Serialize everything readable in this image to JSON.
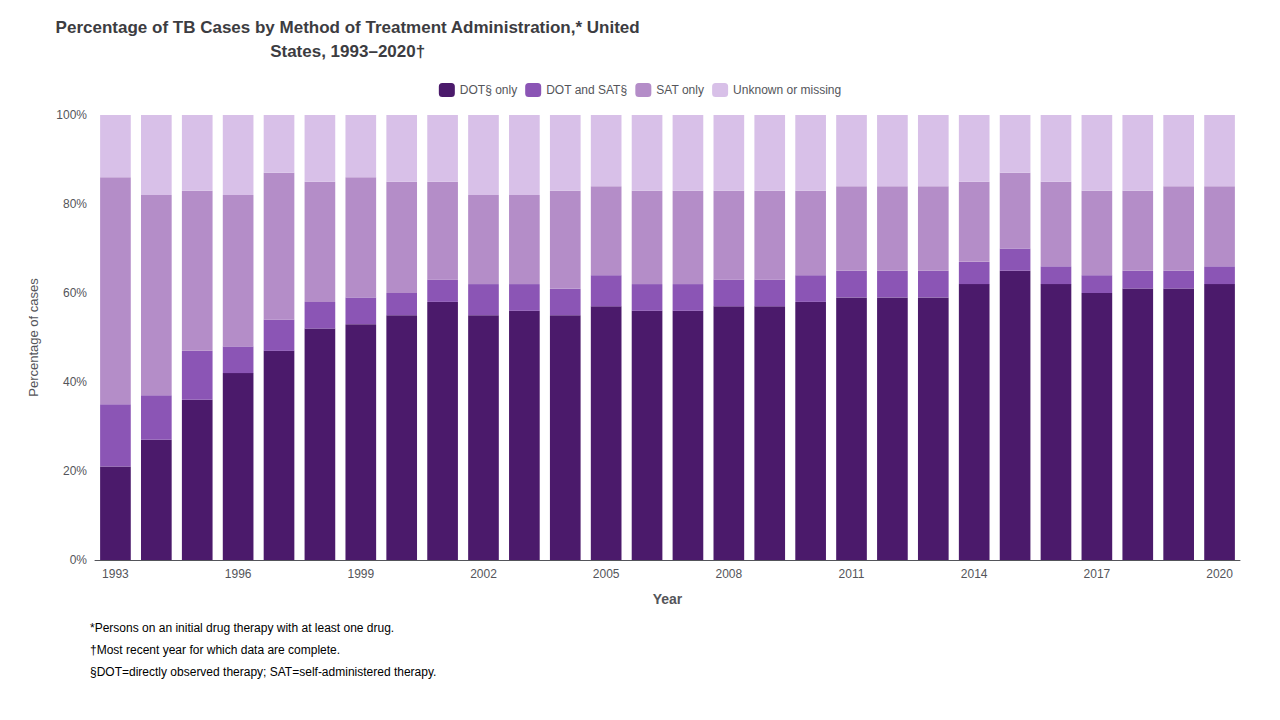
{
  "chart_data": {
    "type": "bar",
    "stacked": true,
    "title": "Percentage of TB Cases by Method of Treatment Administration,* United\nStates, 1993–2020†",
    "xlabel": "Year",
    "ylabel": "Percentage of cases",
    "categories": [
      "1993",
      null,
      null,
      "1996",
      null,
      null,
      "1999",
      null,
      null,
      "2002",
      null,
      null,
      "2005",
      null,
      null,
      "2008",
      null,
      null,
      "2011",
      null,
      null,
      "2014",
      null,
      null,
      "2017",
      null,
      null,
      "2020"
    ],
    "series": [
      {
        "name": "DOT§ only",
        "color": "#4B1A6B",
        "values": [
          21,
          27,
          36,
          42,
          47,
          52,
          53,
          55,
          58,
          55,
          56,
          55,
          57,
          56,
          56,
          57,
          57,
          58,
          59,
          59,
          59,
          62,
          65,
          62,
          60,
          61,
          61,
          62
        ]
      },
      {
        "name": "DOT and SAT§",
        "color": "#8B55B5",
        "values": [
          14,
          10,
          11,
          6,
          7,
          6,
          6,
          5,
          5,
          7,
          6,
          6,
          7,
          6,
          6,
          6,
          6,
          6,
          6,
          6,
          6,
          5,
          5,
          4,
          4,
          4,
          4,
          4
        ]
      },
      {
        "name": "SAT only",
        "color": "#B48DC8",
        "values": [
          51,
          45,
          36,
          34,
          33,
          27,
          27,
          25,
          22,
          20,
          20,
          22,
          20,
          21,
          21,
          20,
          20,
          19,
          19,
          19,
          19,
          18,
          17,
          19,
          19,
          18,
          19,
          18
        ]
      },
      {
        "name": "Unknown or missing",
        "color": "#D8C0E8",
        "values": [
          14,
          18,
          17,
          18,
          13,
          15,
          14,
          15,
          15,
          18,
          18,
          17,
          16,
          17,
          17,
          17,
          17,
          17,
          16,
          16,
          16,
          15,
          13,
          15,
          17,
          17,
          16,
          16
        ]
      }
    ],
    "ylim": [
      0,
      100
    ],
    "yticks": [
      {
        "value": 0,
        "label": "0%"
      },
      {
        "value": 20,
        "label": "20%"
      },
      {
        "value": 40,
        "label": "40%"
      },
      {
        "value": 60,
        "label": "60%"
      },
      {
        "value": 80,
        "label": "80%"
      },
      {
        "value": 100,
        "label": "100%"
      }
    ],
    "grid": false,
    "legend": "top",
    "annotations": [
      "*Persons on an initial drug therapy with at least one drug.",
      "†Most recent year for which data are complete.",
      "§DOT=directly observed therapy; SAT=self-administered therapy."
    ]
  }
}
